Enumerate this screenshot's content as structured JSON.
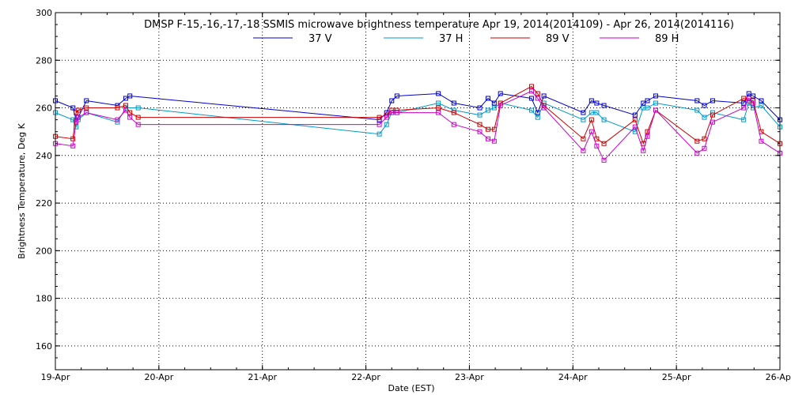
{
  "chart_data": {
    "type": "line",
    "title": "DMSP F-15,-16,-17,-18 SSMIS microwave brightness temperature Apr 19, 2014(2014109) - Apr 26, 2014(2014116)",
    "xlabel": "Date (EST)",
    "ylabel": "Brightness Temperature, Deg K",
    "xlim": [
      0,
      7
    ],
    "ylim": [
      150,
      300
    ],
    "x_ticks": [
      {
        "value": 0,
        "label": "19-Apr"
      },
      {
        "value": 1,
        "label": "20-Apr"
      },
      {
        "value": 2,
        "label": "21-Apr"
      },
      {
        "value": 3,
        "label": "22-Apr"
      },
      {
        "value": 4,
        "label": "23-Apr"
      },
      {
        "value": 5,
        "label": "24-Apr"
      },
      {
        "value": 6,
        "label": "25-Apr"
      },
      {
        "value": 7,
        "label": "26-Apr"
      }
    ],
    "y_ticks": [
      {
        "value": 160,
        "label": "160"
      },
      {
        "value": 180,
        "label": "180"
      },
      {
        "value": 200,
        "label": "200"
      },
      {
        "value": 220,
        "label": "220"
      },
      {
        "value": 240,
        "label": "240"
      },
      {
        "value": 260,
        "label": "260"
      },
      {
        "value": 280,
        "label": "280"
      },
      {
        "value": 300,
        "label": "300"
      }
    ],
    "grid": true,
    "legend_position": "top-center",
    "series": [
      {
        "name": "37 V",
        "color": "#0000cc",
        "points": [
          [
            0.0,
            263
          ],
          [
            0.17,
            260
          ],
          [
            0.2,
            255
          ],
          [
            0.22,
            256
          ],
          [
            0.3,
            263
          ],
          [
            0.6,
            261
          ],
          [
            0.68,
            264
          ],
          [
            0.72,
            265
          ],
          [
            3.13,
            255
          ],
          [
            3.2,
            258
          ],
          [
            3.25,
            263
          ],
          [
            3.3,
            265
          ],
          [
            3.7,
            266
          ],
          [
            3.85,
            262
          ],
          [
            4.1,
            260
          ],
          [
            4.18,
            264
          ],
          [
            4.24,
            262
          ],
          [
            4.3,
            266
          ],
          [
            4.6,
            264
          ],
          [
            4.66,
            258
          ],
          [
            4.72,
            265
          ],
          [
            5.1,
            258
          ],
          [
            5.18,
            263
          ],
          [
            5.23,
            262
          ],
          [
            5.3,
            261
          ],
          [
            5.6,
            257
          ],
          [
            5.68,
            262
          ],
          [
            5.72,
            263
          ],
          [
            5.8,
            265
          ],
          [
            6.2,
            263
          ],
          [
            6.27,
            261
          ],
          [
            6.35,
            263
          ],
          [
            6.65,
            262
          ],
          [
            6.7,
            266
          ],
          [
            6.74,
            265
          ],
          [
            6.82,
            263
          ],
          [
            7.0,
            255
          ]
        ]
      },
      {
        "name": "37 H",
        "color": "#0099cc",
        "points": [
          [
            0.0,
            258
          ],
          [
            0.17,
            255
          ],
          [
            0.2,
            252
          ],
          [
            0.22,
            255
          ],
          [
            0.3,
            258
          ],
          [
            0.6,
            254
          ],
          [
            0.68,
            260
          ],
          [
            0.8,
            260
          ],
          [
            3.13,
            249
          ],
          [
            3.2,
            253
          ],
          [
            3.25,
            258
          ],
          [
            3.3,
            258
          ],
          [
            3.7,
            262
          ],
          [
            3.85,
            259
          ],
          [
            4.1,
            257
          ],
          [
            4.18,
            259
          ],
          [
            4.24,
            260
          ],
          [
            4.3,
            262
          ],
          [
            4.6,
            259
          ],
          [
            4.66,
            256
          ],
          [
            4.72,
            262
          ],
          [
            5.1,
            255
          ],
          [
            5.18,
            258
          ],
          [
            5.23,
            258
          ],
          [
            5.3,
            255
          ],
          [
            5.6,
            250
          ],
          [
            5.68,
            260
          ],
          [
            5.72,
            260
          ],
          [
            5.8,
            262
          ],
          [
            6.2,
            259
          ],
          [
            6.27,
            256
          ],
          [
            6.35,
            258
          ],
          [
            6.65,
            255
          ],
          [
            6.7,
            262
          ],
          [
            6.74,
            260
          ],
          [
            6.82,
            261
          ],
          [
            7.0,
            252
          ]
        ]
      },
      {
        "name": "89 V",
        "color": "#cc0000",
        "points": [
          [
            0.0,
            248
          ],
          [
            0.17,
            247
          ],
          [
            0.2,
            258
          ],
          [
            0.22,
            259
          ],
          [
            0.3,
            260
          ],
          [
            0.6,
            260
          ],
          [
            0.68,
            261
          ],
          [
            0.72,
            258
          ],
          [
            0.8,
            256
          ],
          [
            3.13,
            256
          ],
          [
            3.2,
            257
          ],
          [
            3.25,
            259
          ],
          [
            3.3,
            259
          ],
          [
            3.7,
            260
          ],
          [
            3.85,
            258
          ],
          [
            4.1,
            253
          ],
          [
            4.18,
            251
          ],
          [
            4.24,
            251
          ],
          [
            4.3,
            262
          ],
          [
            4.6,
            269
          ],
          [
            4.66,
            266
          ],
          [
            4.72,
            261
          ],
          [
            5.1,
            247
          ],
          [
            5.18,
            255
          ],
          [
            5.23,
            247
          ],
          [
            5.3,
            245
          ],
          [
            5.6,
            255
          ],
          [
            5.68,
            245
          ],
          [
            5.72,
            250
          ],
          [
            5.8,
            259
          ],
          [
            6.2,
            246
          ],
          [
            6.27,
            247
          ],
          [
            6.35,
            257
          ],
          [
            6.65,
            264
          ],
          [
            6.7,
            263
          ],
          [
            6.74,
            263
          ],
          [
            6.82,
            250
          ],
          [
            7.0,
            245
          ]
        ]
      },
      {
        "name": "89 H",
        "color": "#cc00cc",
        "points": [
          [
            0.0,
            245
          ],
          [
            0.17,
            244
          ],
          [
            0.2,
            254
          ],
          [
            0.22,
            256
          ],
          [
            0.3,
            258
          ],
          [
            0.6,
            255
          ],
          [
            0.68,
            259
          ],
          [
            0.72,
            256
          ],
          [
            0.8,
            253
          ],
          [
            3.13,
            253
          ],
          [
            3.2,
            256
          ],
          [
            3.25,
            258
          ],
          [
            3.3,
            258
          ],
          [
            3.7,
            258
          ],
          [
            3.85,
            253
          ],
          [
            4.1,
            250
          ],
          [
            4.18,
            247
          ],
          [
            4.24,
            246
          ],
          [
            4.3,
            261
          ],
          [
            4.6,
            267
          ],
          [
            4.66,
            264
          ],
          [
            4.72,
            260
          ],
          [
            5.1,
            242
          ],
          [
            5.18,
            250
          ],
          [
            5.23,
            244
          ],
          [
            5.3,
            238
          ],
          [
            5.6,
            252
          ],
          [
            5.68,
            242
          ],
          [
            5.72,
            248
          ],
          [
            5.8,
            259
          ],
          [
            6.2,
            241
          ],
          [
            6.27,
            243
          ],
          [
            6.35,
            254
          ],
          [
            6.65,
            260
          ],
          [
            6.7,
            264
          ],
          [
            6.74,
            262
          ],
          [
            6.82,
            246
          ],
          [
            7.0,
            241
          ]
        ]
      }
    ]
  }
}
